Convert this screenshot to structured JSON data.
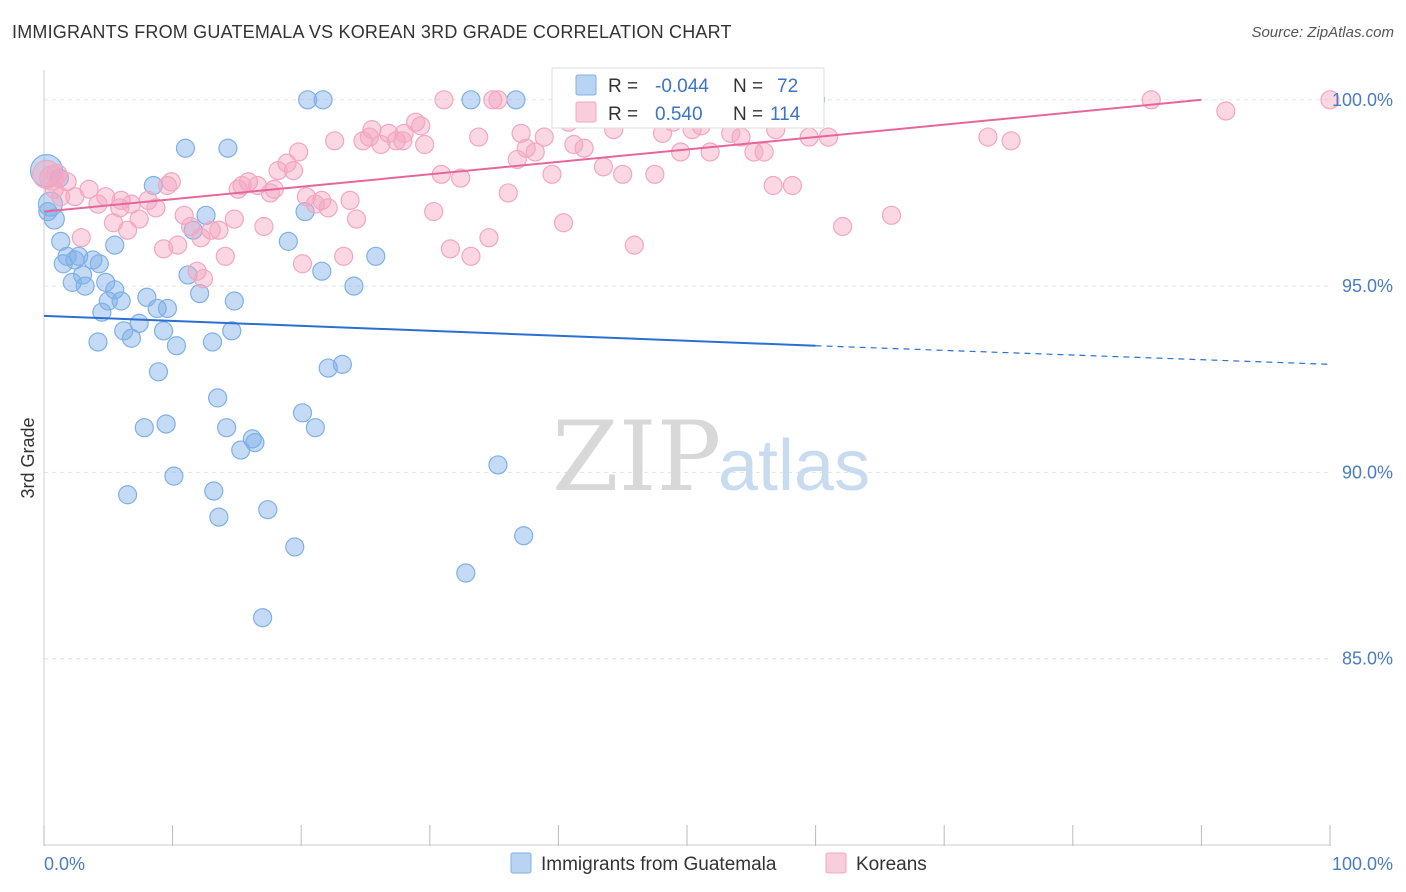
{
  "title": "IMMIGRANTS FROM GUATEMALA VS KOREAN 3RD GRADE CORRELATION CHART",
  "source": "Source: ZipAtlas.com",
  "watermark": {
    "zip": "ZIP",
    "atlas": "atlas"
  },
  "chart_data": {
    "type": "scatter",
    "ylabel": "3rd Grade",
    "xlim": [
      0,
      100
    ],
    "ylim": [
      80,
      100.8
    ],
    "x_tick_labels": [
      "0.0%",
      "100.0%"
    ],
    "y_ticks": [
      {
        "value": 100,
        "label": "100.0%"
      },
      {
        "value": 95,
        "label": "95.0%"
      },
      {
        "value": 90,
        "label": "90.0%"
      },
      {
        "value": 85,
        "label": "85.0%"
      }
    ],
    "grid": true,
    "legend_placement": "top-center",
    "series": [
      {
        "name": "Immigrants from Guatemala",
        "color": "#7fb0e8",
        "line_color": "#2b6fd0",
        "R": "-0.044",
        "N": "72",
        "trend": {
          "x0": 0,
          "y0": 94.2,
          "x1": 60,
          "y1": 93.4,
          "dash_to_x": 100,
          "dash_to_y": 92.9
        },
        "points": [
          [
            0.2,
            98.1,
            16
          ],
          [
            0.5,
            97.2,
            12
          ],
          [
            0.8,
            96.8,
            10
          ],
          [
            1.3,
            96.2,
            9
          ],
          [
            1.5,
            95.6,
            9
          ],
          [
            1.8,
            95.8,
            9
          ],
          [
            2.2,
            95.1,
            9
          ],
          [
            2.7,
            95.8,
            9
          ],
          [
            3.2,
            95.0,
            9
          ],
          [
            3.8,
            95.7,
            9
          ],
          [
            4.3,
            95.6,
            9
          ],
          [
            4.8,
            95.1,
            9
          ],
          [
            4.5,
            94.3,
            9
          ],
          [
            5.0,
            94.6,
            9
          ],
          [
            5.5,
            94.9,
            9
          ],
          [
            6.0,
            94.6,
            9
          ],
          [
            6.2,
            93.8,
            9
          ],
          [
            6.8,
            93.6,
            9
          ],
          [
            7.4,
            94.0,
            9
          ],
          [
            8.0,
            94.7,
            9
          ],
          [
            8.8,
            94.4,
            9
          ],
          [
            9.6,
            94.4,
            9
          ],
          [
            9.3,
            93.8,
            9
          ],
          [
            10.3,
            93.4,
            9
          ],
          [
            11.2,
            95.3,
            9
          ],
          [
            11.6,
            96.5,
            9
          ],
          [
            12.1,
            94.8,
            9
          ],
          [
            12.6,
            96.9,
            9
          ],
          [
            13.1,
            93.5,
            9
          ],
          [
            14.3,
            98.7,
            9
          ],
          [
            11.0,
            98.7,
            9
          ],
          [
            8.5,
            97.7,
            9
          ],
          [
            14.8,
            94.6,
            9
          ],
          [
            14.6,
            93.8,
            9
          ],
          [
            4.2,
            93.5,
            9
          ],
          [
            8.9,
            92.7,
            9
          ],
          [
            13.5,
            92.0,
            9
          ],
          [
            9.5,
            91.3,
            9
          ],
          [
            7.8,
            91.2,
            9
          ],
          [
            14.2,
            91.2,
            9
          ],
          [
            15.3,
            90.6,
            9
          ],
          [
            16.2,
            90.9,
            9
          ],
          [
            16.4,
            90.8,
            9
          ],
          [
            20.1,
            91.6,
            9
          ],
          [
            21.1,
            91.2,
            9
          ],
          [
            10.1,
            89.9,
            9
          ],
          [
            13.2,
            89.5,
            9
          ],
          [
            6.5,
            89.4,
            9
          ],
          [
            13.6,
            88.8,
            9
          ],
          [
            17.4,
            89.0,
            9
          ],
          [
            19.5,
            88.0,
            9
          ],
          [
            17.0,
            86.1,
            9
          ],
          [
            22.1,
            92.8,
            9
          ],
          [
            23.2,
            92.9,
            9
          ],
          [
            20.3,
            97.0,
            9
          ],
          [
            19.0,
            96.2,
            9
          ],
          [
            21.6,
            95.4,
            9
          ],
          [
            24.1,
            95.0,
            9
          ],
          [
            25.8,
            95.8,
            9
          ],
          [
            20.5,
            100.0,
            9
          ],
          [
            21.7,
            100.0,
            9
          ],
          [
            33.2,
            100.0,
            9
          ],
          [
            36.7,
            100.0,
            9
          ],
          [
            35.3,
            90.2,
            9
          ],
          [
            32.8,
            87.3,
            9
          ],
          [
            37.3,
            88.3,
            9
          ],
          [
            60.0,
            100.0,
            9
          ],
          [
            5.5,
            96.1,
            9
          ],
          [
            2.4,
            95.7,
            9
          ],
          [
            1.2,
            97.9,
            9
          ],
          [
            0.3,
            97.0,
            9
          ],
          [
            3.0,
            95.3,
            9
          ]
        ]
      },
      {
        "name": "Koreans",
        "color": "#f4a6c0",
        "line_color": "#e5679a",
        "R": "0.540",
        "N": "114",
        "trend": {
          "x0": 0,
          "y0": 97.0,
          "x1": 90,
          "y1": 100.0
        },
        "points": [
          [
            0.2,
            98.0,
            14
          ],
          [
            0.6,
            97.9,
            12
          ],
          [
            1.0,
            98.0,
            10
          ],
          [
            1.8,
            97.8,
            9
          ],
          [
            2.4,
            97.4,
            9
          ],
          [
            3.5,
            97.6,
            9
          ],
          [
            4.2,
            97.2,
            9
          ],
          [
            4.8,
            97.4,
            9
          ],
          [
            5.4,
            96.7,
            9
          ],
          [
            5.9,
            97.1,
            9
          ],
          [
            6.5,
            96.5,
            9
          ],
          [
            6.8,
            97.2,
            9
          ],
          [
            7.4,
            96.8,
            9
          ],
          [
            8.1,
            97.3,
            9
          ],
          [
            8.7,
            97.1,
            9
          ],
          [
            9.3,
            96.0,
            9
          ],
          [
            9.9,
            97.8,
            9
          ],
          [
            10.4,
            96.1,
            9
          ],
          [
            10.9,
            96.9,
            9
          ],
          [
            11.4,
            96.6,
            9
          ],
          [
            11.9,
            95.4,
            9
          ],
          [
            12.4,
            95.2,
            9
          ],
          [
            13.0,
            96.5,
            9
          ],
          [
            13.6,
            96.5,
            9
          ],
          [
            14.1,
            95.8,
            9
          ],
          [
            14.8,
            96.8,
            9
          ],
          [
            15.4,
            97.7,
            9
          ],
          [
            15.9,
            97.8,
            9
          ],
          [
            16.6,
            97.7,
            9
          ],
          [
            17.1,
            96.6,
            9
          ],
          [
            17.6,
            97.5,
            9
          ],
          [
            18.2,
            98.1,
            9
          ],
          [
            18.9,
            98.3,
            9
          ],
          [
            19.4,
            98.1,
            9
          ],
          [
            19.8,
            98.6,
            9
          ],
          [
            20.4,
            97.4,
            9
          ],
          [
            21.1,
            97.2,
            9
          ],
          [
            21.6,
            97.3,
            9
          ],
          [
            22.1,
            97.1,
            9
          ],
          [
            22.6,
            98.9,
            9
          ],
          [
            23.3,
            95.8,
            9
          ],
          [
            23.8,
            97.3,
            9
          ],
          [
            24.3,
            96.8,
            9
          ],
          [
            24.8,
            98.9,
            9
          ],
          [
            25.5,
            99.2,
            9
          ],
          [
            26.2,
            98.8,
            9
          ],
          [
            26.8,
            99.1,
            9
          ],
          [
            27.4,
            98.9,
            9
          ],
          [
            28.0,
            99.1,
            9
          ],
          [
            28.9,
            99.4,
            9
          ],
          [
            29.6,
            98.8,
            9
          ],
          [
            30.3,
            97.0,
            9
          ],
          [
            30.9,
            98.0,
            9
          ],
          [
            31.6,
            96.0,
            9
          ],
          [
            32.4,
            97.9,
            9
          ],
          [
            33.2,
            95.8,
            9
          ],
          [
            33.8,
            99.0,
            9
          ],
          [
            34.6,
            96.3,
            9
          ],
          [
            35.3,
            100.0,
            9
          ],
          [
            36.1,
            97.5,
            9
          ],
          [
            36.8,
            98.4,
            9
          ],
          [
            37.5,
            98.7,
            9
          ],
          [
            38.2,
            98.6,
            9
          ],
          [
            38.9,
            99.0,
            9
          ],
          [
            39.5,
            98.0,
            9
          ],
          [
            40.4,
            96.7,
            9
          ],
          [
            41.2,
            98.8,
            9
          ],
          [
            42.0,
            98.7,
            9
          ],
          [
            42.8,
            100.0,
            9
          ],
          [
            43.5,
            98.2,
            9
          ],
          [
            44.3,
            99.2,
            9
          ],
          [
            45.0,
            98.0,
            9
          ],
          [
            45.9,
            96.1,
            9
          ],
          [
            46.6,
            100.0,
            9
          ],
          [
            47.5,
            98.0,
            9
          ],
          [
            48.1,
            99.1,
            9
          ],
          [
            48.9,
            99.4,
            9
          ],
          [
            49.5,
            98.6,
            9
          ],
          [
            50.4,
            99.2,
            9
          ],
          [
            51.1,
            99.3,
            9
          ],
          [
            51.8,
            98.6,
            9
          ],
          [
            52.5,
            100.0,
            9
          ],
          [
            53.4,
            99.1,
            9
          ],
          [
            54.2,
            99.0,
            9
          ],
          [
            55.2,
            98.6,
            9
          ],
          [
            56.0,
            98.6,
            9
          ],
          [
            56.9,
            99.2,
            9
          ],
          [
            56.7,
            97.7,
            9
          ],
          [
            58.2,
            97.7,
            9
          ],
          [
            59.5,
            99.0,
            9
          ],
          [
            61.0,
            99.0,
            9
          ],
          [
            62.1,
            96.6,
            9
          ],
          [
            65.9,
            96.9,
            9
          ],
          [
            73.4,
            99.0,
            9
          ],
          [
            75.2,
            98.9,
            9
          ],
          [
            86.1,
            100.0,
            9
          ],
          [
            91.9,
            99.7,
            9
          ],
          [
            100.0,
            100.0,
            9
          ],
          [
            1.3,
            97.4,
            9
          ],
          [
            2.9,
            96.3,
            9
          ],
          [
            0.8,
            97.6,
            9
          ],
          [
            6.0,
            97.3,
            9
          ],
          [
            9.6,
            97.7,
            9
          ],
          [
            12.2,
            96.3,
            9
          ],
          [
            15.1,
            97.6,
            9
          ],
          [
            17.9,
            97.6,
            9
          ],
          [
            20.1,
            95.6,
            9
          ],
          [
            25.3,
            99.0,
            9
          ],
          [
            27.9,
            98.9,
            9
          ],
          [
            29.3,
            99.3,
            9
          ],
          [
            31.1,
            100.0,
            9
          ],
          [
            34.9,
            100.0,
            9
          ],
          [
            37.1,
            99.1,
            9
          ],
          [
            40.8,
            99.4,
            9
          ]
        ]
      }
    ]
  },
  "legend": {
    "r_label": "R =",
    "n_label": "N ="
  }
}
